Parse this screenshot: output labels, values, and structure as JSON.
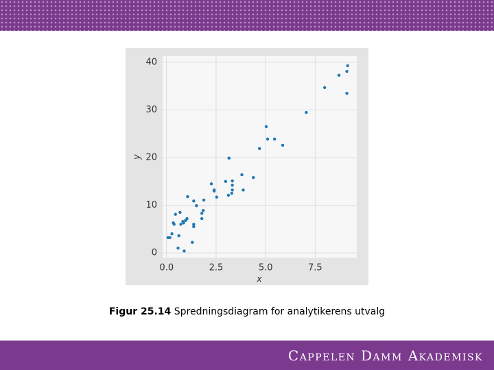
{
  "chart_data": {
    "type": "scatter",
    "xlabel": "x",
    "ylabel": "y",
    "color": "#1f77b4",
    "x": [
      0.07,
      0.17,
      0.27,
      0.34,
      0.45,
      0.38,
      0.58,
      0.62,
      0.68,
      0.72,
      0.82,
      0.86,
      0.89,
      0.96,
      1.03,
      1.06,
      1.3,
      1.37,
      1.37,
      1.37,
      1.51,
      1.78,
      1.78,
      1.85,
      1.88,
      2.26,
      2.4,
      2.4,
      2.53,
      2.98,
      3.12,
      3.15,
      3.29,
      3.32,
      3.32,
      3.32,
      3.8,
      3.87,
      4.38,
      4.69,
      5.03,
      5.1,
      5.45,
      5.86,
      7.05,
      7.98,
      8.7,
      9.1,
      9.14,
      9.1
    ],
    "values": [
      3.2,
      3.2,
      4.0,
      6.3,
      8.1,
      6.0,
      1.0,
      3.6,
      8.5,
      6.0,
      6.6,
      6.3,
      0.4,
      6.8,
      7.2,
      11.8,
      2.2,
      10.9,
      6.0,
      5.5,
      9.9,
      7.2,
      8.3,
      8.9,
      11.1,
      14.5,
      13.0,
      13.2,
      11.7,
      15.0,
      12.1,
      19.9,
      12.5,
      13.2,
      15.1,
      14.2,
      16.4,
      13.2,
      15.8,
      21.9,
      26.5,
      23.9,
      23.9,
      22.6,
      29.5,
      34.7,
      37.3,
      38.1,
      39.3,
      33.5
    ],
    "xlim": [
      -0.2,
      9.6
    ],
    "ylim": [
      -1,
      41.3
    ],
    "xticks": [
      {
        "value": 0,
        "label": "0.0"
      },
      2.5,
      {
        "value": 5,
        "label": "5.0"
      },
      7.5
    ],
    "yticks": [
      0,
      10,
      20,
      30,
      40
    ],
    "grid": true
  },
  "caption": {
    "label": "Figur 25.14",
    "text": "Spredningsdiagram for analytikerens utvalg"
  },
  "footer": {
    "brand": "Cappelen Damm Akademisk"
  }
}
